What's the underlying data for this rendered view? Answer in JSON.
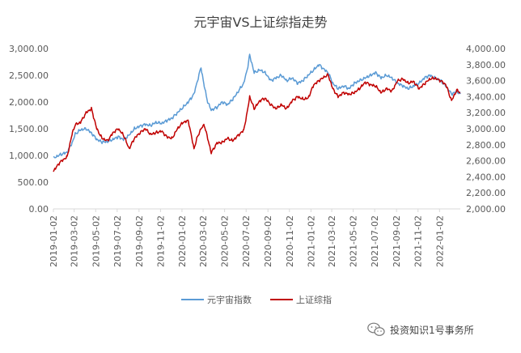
{
  "chart_data": {
    "type": "line",
    "title": "元宇宙VS上证综指走势",
    "x_tick_labels": [
      "2019-01-02",
      "2019-03-02",
      "2019-05-02",
      "2019-07-02",
      "2019-09-02",
      "2019-11-02",
      "2020-01-02",
      "2020-03-02",
      "2020-05-02",
      "2020-07-02",
      "2020-09-02",
      "2020-11-02",
      "2021-01-02",
      "2021-03-02",
      "2021-05-02",
      "2021-07-02",
      "2021-09-02",
      "2021-11-02",
      "2022-01-02"
    ],
    "x_range": [
      "2019-01-02",
      "2022-03-02"
    ],
    "y_left": {
      "min": 0,
      "max": 3000,
      "step": 500,
      "tick_labels": [
        "0.00",
        "500.00",
        "1,000.00",
        "1,500.00",
        "2,000.00",
        "2,500.00",
        "3,000.00"
      ]
    },
    "y_right": {
      "min": 2000,
      "max": 4000,
      "step": 200,
      "tick_labels": [
        "2,000.00",
        "2,200.00",
        "2,400.00",
        "2,600.00",
        "2,800.00",
        "3,000.00",
        "3,200.00",
        "3,400.00",
        "3,600.00",
        "3,800.00",
        "4,000.00"
      ]
    },
    "series": [
      {
        "name": "元宇宙指数",
        "axis": "left",
        "color": "#5B9BD5",
        "points": [
          [
            "2019-01-02",
            950
          ],
          [
            "2019-01-20",
            1010
          ],
          [
            "2019-02-10",
            1060
          ],
          [
            "2019-02-25",
            1250
          ],
          [
            "2019-03-05",
            1400
          ],
          [
            "2019-03-20",
            1480
          ],
          [
            "2019-04-05",
            1500
          ],
          [
            "2019-04-20",
            1420
          ],
          [
            "2019-05-05",
            1300
          ],
          [
            "2019-05-20",
            1250
          ],
          [
            "2019-06-05",
            1260
          ],
          [
            "2019-06-20",
            1300
          ],
          [
            "2019-07-05",
            1350
          ],
          [
            "2019-07-20",
            1300
          ],
          [
            "2019-08-05",
            1380
          ],
          [
            "2019-08-20",
            1500
          ],
          [
            "2019-09-05",
            1550
          ],
          [
            "2019-09-20",
            1580
          ],
          [
            "2019-10-05",
            1560
          ],
          [
            "2019-10-20",
            1620
          ],
          [
            "2019-11-05",
            1600
          ],
          [
            "2019-11-20",
            1650
          ],
          [
            "2019-12-05",
            1700
          ],
          [
            "2019-12-20",
            1800
          ],
          [
            "2020-01-05",
            1900
          ],
          [
            "2020-01-20",
            2000
          ],
          [
            "2020-02-05",
            2150
          ],
          [
            "2020-02-15",
            2400
          ],
          [
            "2020-02-25",
            2650
          ],
          [
            "2020-03-05",
            2300
          ],
          [
            "2020-03-15",
            2000
          ],
          [
            "2020-03-25",
            1850
          ],
          [
            "2020-04-10",
            1900
          ],
          [
            "2020-04-25",
            2000
          ],
          [
            "2020-05-10",
            1950
          ],
          [
            "2020-05-25",
            2050
          ],
          [
            "2020-06-10",
            2200
          ],
          [
            "2020-06-25",
            2350
          ],
          [
            "2020-07-05",
            2600
          ],
          [
            "2020-07-12",
            2880
          ],
          [
            "2020-07-25",
            2550
          ],
          [
            "2020-08-10",
            2600
          ],
          [
            "2020-08-25",
            2550
          ],
          [
            "2020-09-10",
            2400
          ],
          [
            "2020-09-25",
            2450
          ],
          [
            "2020-10-10",
            2500
          ],
          [
            "2020-10-25",
            2400
          ],
          [
            "2020-11-10",
            2450
          ],
          [
            "2020-11-25",
            2350
          ],
          [
            "2020-12-10",
            2400
          ],
          [
            "2020-12-25",
            2500
          ],
          [
            "2021-01-10",
            2600
          ],
          [
            "2021-01-25",
            2700
          ],
          [
            "2021-02-10",
            2600
          ],
          [
            "2021-02-20",
            2550
          ],
          [
            "2021-03-05",
            2350
          ],
          [
            "2021-03-20",
            2250
          ],
          [
            "2021-04-05",
            2300
          ],
          [
            "2021-04-20",
            2250
          ],
          [
            "2021-05-05",
            2350
          ],
          [
            "2021-05-20",
            2400
          ],
          [
            "2021-06-05",
            2450
          ],
          [
            "2021-06-20",
            2500
          ],
          [
            "2021-07-05",
            2550
          ],
          [
            "2021-07-20",
            2450
          ],
          [
            "2021-08-05",
            2500
          ],
          [
            "2021-08-20",
            2450
          ],
          [
            "2021-09-05",
            2350
          ],
          [
            "2021-09-20",
            2300
          ],
          [
            "2021-10-05",
            2250
          ],
          [
            "2021-10-20",
            2300
          ],
          [
            "2021-11-05",
            2350
          ],
          [
            "2021-11-20",
            2450
          ],
          [
            "2021-12-05",
            2500
          ],
          [
            "2021-12-20",
            2450
          ],
          [
            "2022-01-05",
            2400
          ],
          [
            "2022-01-20",
            2300
          ],
          [
            "2022-02-05",
            2150
          ],
          [
            "2022-02-20",
            2200
          ],
          [
            "2022-03-02",
            2150
          ]
        ]
      },
      {
        "name": "上证综指",
        "axis": "right",
        "color": "#C00000",
        "points": [
          [
            "2019-01-02",
            2470
          ],
          [
            "2019-01-20",
            2580
          ],
          [
            "2019-02-10",
            2650
          ],
          [
            "2019-02-25",
            2950
          ],
          [
            "2019-03-05",
            3050
          ],
          [
            "2019-03-20",
            3080
          ],
          [
            "2019-04-05",
            3200
          ],
          [
            "2019-04-20",
            3250
          ],
          [
            "2019-05-05",
            3000
          ],
          [
            "2019-05-20",
            2880
          ],
          [
            "2019-06-05",
            2850
          ],
          [
            "2019-06-20",
            2950
          ],
          [
            "2019-07-05",
            3000
          ],
          [
            "2019-07-20",
            2920
          ],
          [
            "2019-08-05",
            2750
          ],
          [
            "2019-08-20",
            2880
          ],
          [
            "2019-09-05",
            2950
          ],
          [
            "2019-09-20",
            3000
          ],
          [
            "2019-10-05",
            2930
          ],
          [
            "2019-10-20",
            2950
          ],
          [
            "2019-11-05",
            2970
          ],
          [
            "2019-11-20",
            2900
          ],
          [
            "2019-12-05",
            2880
          ],
          [
            "2019-12-20",
            3000
          ],
          [
            "2020-01-05",
            3080
          ],
          [
            "2020-01-20",
            3100
          ],
          [
            "2020-02-05",
            2750
          ],
          [
            "2020-02-15",
            2900
          ],
          [
            "2020-02-25",
            3000
          ],
          [
            "2020-03-05",
            3050
          ],
          [
            "2020-03-15",
            2880
          ],
          [
            "2020-03-25",
            2700
          ],
          [
            "2020-04-10",
            2820
          ],
          [
            "2020-04-25",
            2830
          ],
          [
            "2020-05-10",
            2880
          ],
          [
            "2020-05-25",
            2850
          ],
          [
            "2020-06-10",
            2920
          ],
          [
            "2020-06-25",
            2980
          ],
          [
            "2020-07-05",
            3200
          ],
          [
            "2020-07-12",
            3400
          ],
          [
            "2020-07-25",
            3250
          ],
          [
            "2020-08-10",
            3350
          ],
          [
            "2020-08-25",
            3380
          ],
          [
            "2020-09-10",
            3300
          ],
          [
            "2020-09-25",
            3250
          ],
          [
            "2020-10-10",
            3300
          ],
          [
            "2020-10-25",
            3250
          ],
          [
            "2020-11-10",
            3350
          ],
          [
            "2020-11-25",
            3400
          ],
          [
            "2020-12-10",
            3370
          ],
          [
            "2020-12-25",
            3380
          ],
          [
            "2021-01-10",
            3550
          ],
          [
            "2021-01-25",
            3600
          ],
          [
            "2021-02-10",
            3650
          ],
          [
            "2021-02-20",
            3670
          ],
          [
            "2021-03-05",
            3500
          ],
          [
            "2021-03-20",
            3400
          ],
          [
            "2021-04-05",
            3450
          ],
          [
            "2021-04-20",
            3430
          ],
          [
            "2021-05-05",
            3450
          ],
          [
            "2021-05-20",
            3500
          ],
          [
            "2021-06-05",
            3580
          ],
          [
            "2021-06-20",
            3550
          ],
          [
            "2021-07-05",
            3530
          ],
          [
            "2021-07-20",
            3450
          ],
          [
            "2021-08-05",
            3500
          ],
          [
            "2021-08-20",
            3470
          ],
          [
            "2021-09-05",
            3600
          ],
          [
            "2021-09-20",
            3620
          ],
          [
            "2021-10-05",
            3570
          ],
          [
            "2021-10-20",
            3590
          ],
          [
            "2021-11-05",
            3500
          ],
          [
            "2021-11-20",
            3560
          ],
          [
            "2021-12-05",
            3620
          ],
          [
            "2021-12-20",
            3630
          ],
          [
            "2022-01-05",
            3600
          ],
          [
            "2022-01-20",
            3550
          ],
          [
            "2022-02-05",
            3350
          ],
          [
            "2022-02-20",
            3480
          ],
          [
            "2022-03-02",
            3450
          ]
        ]
      }
    ],
    "legend": {
      "position": "bottom",
      "entries": [
        "元宇宙指数",
        "上证综指"
      ]
    },
    "grid": false
  },
  "watermark": {
    "text": "投资知识1号事务所",
    "icon": "wechat-icon"
  }
}
